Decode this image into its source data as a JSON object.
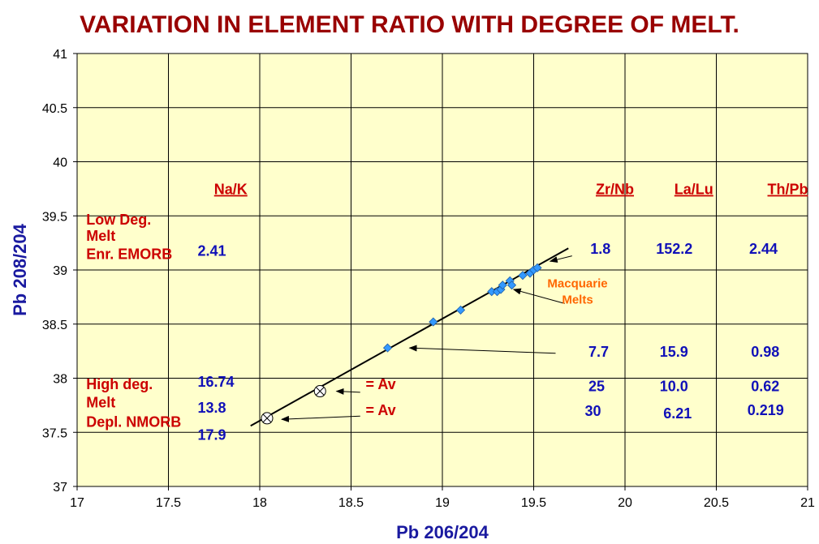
{
  "chart_data": {
    "type": "scatter",
    "title": "VARIATION IN ELEMENT RATIO WITH DEGREE OF MELT.",
    "xlabel": "Pb 206/204",
    "ylabel": "Pb 208/204",
    "xlim": [
      17,
      21
    ],
    "ylim": [
      37,
      41
    ],
    "xticks": [
      "17",
      "17.5",
      "18",
      "18.5",
      "19",
      "19.5",
      "20",
      "20.5",
      "21"
    ],
    "yticks": [
      "37",
      "37.5",
      "38",
      "38.5",
      "39",
      "39.5",
      "40",
      "40.5",
      "41"
    ],
    "grid": true,
    "plot_background": "#ffffcc",
    "series": [
      {
        "name": "Macquarie Melts",
        "marker": "diamond",
        "color": "#3399ff",
        "points": [
          {
            "x": 18.7,
            "y": 38.28
          },
          {
            "x": 18.95,
            "y": 38.52
          },
          {
            "x": 19.1,
            "y": 38.63
          },
          {
            "x": 19.27,
            "y": 38.8
          },
          {
            "x": 19.3,
            "y": 38.8
          },
          {
            "x": 19.32,
            "y": 38.82
          },
          {
            "x": 19.33,
            "y": 38.86
          },
          {
            "x": 19.37,
            "y": 38.9
          },
          {
            "x": 19.38,
            "y": 38.86
          },
          {
            "x": 19.44,
            "y": 38.95
          },
          {
            "x": 19.48,
            "y": 38.97
          },
          {
            "x": 19.5,
            "y": 39.0
          },
          {
            "x": 19.52,
            "y": 39.02
          }
        ]
      },
      {
        "name": "Av",
        "marker": "circle-x",
        "color": "#000000",
        "points": [
          {
            "x": 18.33,
            "y": 37.88
          },
          {
            "x": 18.04,
            "y": 37.63
          }
        ]
      }
    ],
    "trendline": {
      "x1": 17.95,
      "y1": 37.56,
      "x2": 19.69,
      "y2": 39.2
    },
    "column_headers": [
      {
        "text": "Na/K",
        "x": 17.75,
        "y": 39.7
      },
      {
        "text": "Zr/Nb",
        "x": 19.84,
        "y": 39.7
      },
      {
        "text": "La/Lu",
        "x": 20.27,
        "y": 39.7
      },
      {
        "text": "Th/Pb",
        "x": 20.78,
        "y": 39.7
      }
    ],
    "red_labels": [
      {
        "text": "Low Deg.",
        "x": 17.05,
        "y": 39.42
      },
      {
        "text": "Melt",
        "x": 17.05,
        "y": 39.27
      },
      {
        "text": "Enr. EMORB",
        "x": 17.05,
        "y": 39.1
      },
      {
        "text": "High deg.",
        "x": 17.05,
        "y": 37.9
      },
      {
        "text": "Melt",
        "x": 17.05,
        "y": 37.73
      },
      {
        "text": "Depl. NMORB",
        "x": 17.05,
        "y": 37.55
      },
      {
        "text": "= Av",
        "x": 18.58,
        "y": 37.9
      },
      {
        "text": "= Av",
        "x": 18.58,
        "y": 37.66
      }
    ],
    "value_labels": [
      {
        "text": "2.41",
        "x": 17.66,
        "y": 39.13
      },
      {
        "text": "1.8",
        "x": 19.81,
        "y": 39.15
      },
      {
        "text": "152.2",
        "x": 20.17,
        "y": 39.15
      },
      {
        "text": "2.44",
        "x": 20.68,
        "y": 39.15
      },
      {
        "text": "7.7",
        "x": 19.8,
        "y": 38.2
      },
      {
        "text": "15.9",
        "x": 20.19,
        "y": 38.2
      },
      {
        "text": "0.98",
        "x": 20.69,
        "y": 38.2
      },
      {
        "text": "16.74",
        "x": 17.66,
        "y": 37.92
      },
      {
        "text": "25",
        "x": 19.8,
        "y": 37.88
      },
      {
        "text": "10.0",
        "x": 20.19,
        "y": 37.88
      },
      {
        "text": "0.62",
        "x": 20.69,
        "y": 37.88
      },
      {
        "text": "13.8",
        "x": 17.66,
        "y": 37.68
      },
      {
        "text": "30",
        "x": 19.78,
        "y": 37.65
      },
      {
        "text": "6.21",
        "x": 20.21,
        "y": 37.63
      },
      {
        "text": "0.219",
        "x": 20.67,
        "y": 37.66
      },
      {
        "text": "17.9",
        "x": 17.66,
        "y": 37.43
      }
    ],
    "orange_labels": [
      {
        "text": "Macquarie",
        "x": 19.74,
        "y": 38.84
      },
      {
        "text": "Melts",
        "x": 19.74,
        "y": 38.69
      }
    ],
    "arrows": [
      {
        "from": [
          19.71,
          39.13
        ],
        "to": [
          19.59,
          39.08
        ]
      },
      {
        "from": [
          19.67,
          38.69
        ],
        "to": [
          19.39,
          38.82
        ]
      },
      {
        "from": [
          19.62,
          38.23
        ],
        "to": [
          18.82,
          38.28
        ]
      },
      {
        "from": [
          18.55,
          37.87
        ],
        "to": [
          18.42,
          37.88
        ]
      },
      {
        "from": [
          18.55,
          37.65
        ],
        "to": [
          18.12,
          37.62
        ]
      }
    ]
  }
}
